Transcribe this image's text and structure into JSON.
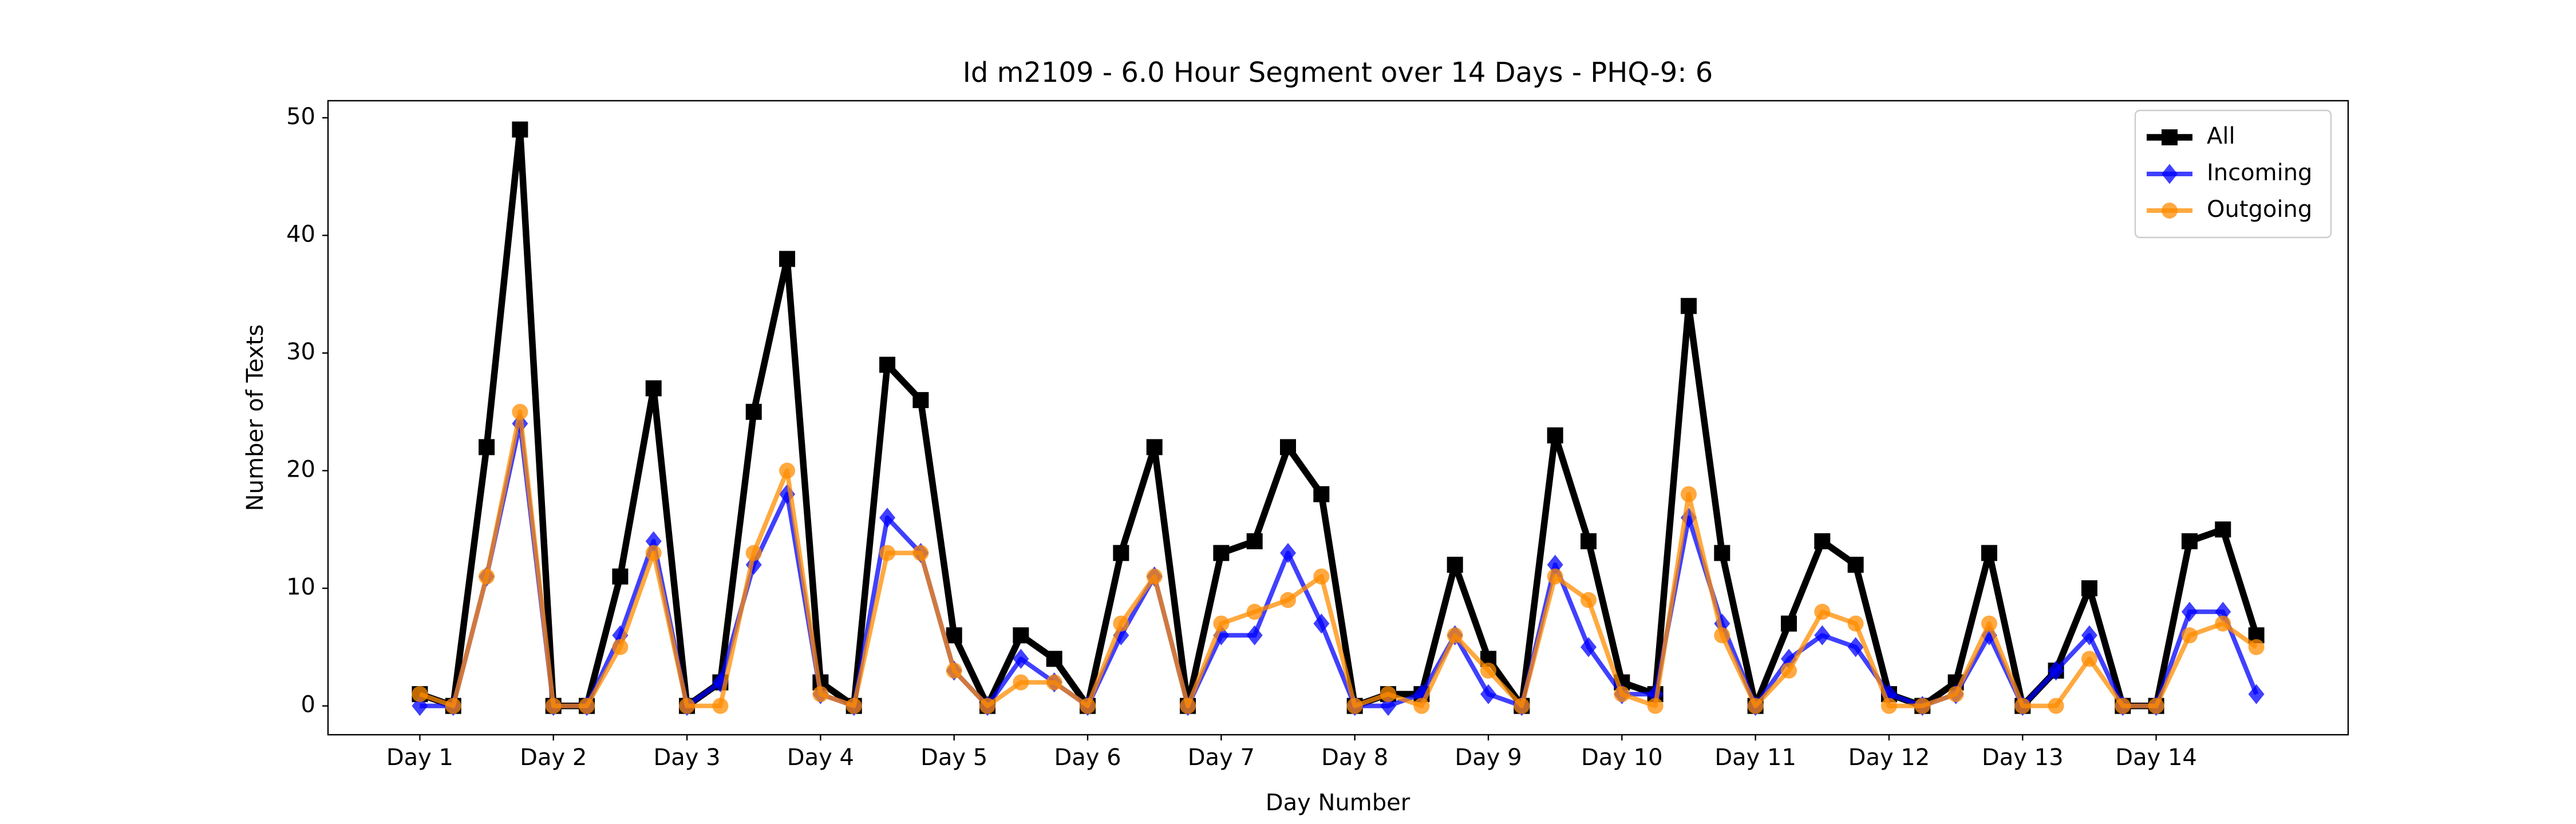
{
  "chart_data": {
    "type": "line",
    "title": "Id m2109 - 6.0 Hour Segment over 14 Days - PHQ-9: 6",
    "x_label": "Day Number",
    "y_label": "Number of Texts",
    "x": [
      0,
      1,
      2,
      3,
      4,
      5,
      6,
      7,
      8,
      9,
      10,
      11,
      12,
      13,
      14,
      15,
      16,
      17,
      18,
      19,
      20,
      21,
      22,
      23,
      24,
      25,
      26,
      27,
      28,
      29,
      30,
      31,
      32,
      33,
      34,
      35,
      36,
      37,
      38,
      39,
      40,
      41,
      42,
      43,
      44,
      45,
      46,
      47,
      48,
      49,
      50,
      51,
      52,
      53,
      54,
      55
    ],
    "series": [
      {
        "name": "All",
        "color": "#000000",
        "marker": "square",
        "width": "thick",
        "values": [
          1,
          0,
          22,
          49,
          0,
          0,
          11,
          27,
          0,
          2,
          25,
          38,
          2,
          0,
          29,
          26,
          6,
          0,
          6,
          4,
          0,
          13,
          22,
          0,
          13,
          14,
          22,
          18,
          0,
          1,
          1,
          12,
          4,
          0,
          23,
          14,
          2,
          1,
          34,
          13,
          0,
          7,
          14,
          12,
          1,
          0,
          2,
          13,
          0,
          3,
          10,
          0,
          0,
          14,
          15,
          6
        ]
      },
      {
        "name": "Incoming",
        "color": "#0000ff",
        "marker": "diamond",
        "width": "normal",
        "values": [
          0,
          0,
          11,
          24,
          0,
          0,
          6,
          14,
          0,
          2,
          12,
          18,
          1,
          0,
          16,
          13,
          3,
          0,
          4,
          2,
          0,
          6,
          11,
          0,
          6,
          6,
          13,
          7,
          0,
          0,
          1,
          6,
          1,
          0,
          12,
          5,
          1,
          1,
          16,
          7,
          0,
          4,
          6,
          5,
          1,
          0,
          1,
          6,
          0,
          3,
          6,
          0,
          0,
          8,
          8,
          1
        ]
      },
      {
        "name": "Outgoing",
        "color": "#ff8c00",
        "marker": "circle",
        "width": "normal",
        "values": [
          1,
          0,
          11,
          25,
          0,
          0,
          5,
          13,
          0,
          0,
          13,
          20,
          1,
          0,
          13,
          13,
          3,
          0,
          2,
          2,
          0,
          7,
          11,
          0,
          7,
          8,
          9,
          11,
          0,
          1,
          0,
          6,
          3,
          0,
          11,
          9,
          1,
          0,
          18,
          6,
          0,
          3,
          8,
          7,
          0,
          0,
          1,
          7,
          0,
          0,
          4,
          0,
          0,
          6,
          7,
          5
        ]
      }
    ],
    "xlim": [
      -2.75,
      57.75
    ],
    "xticks": [
      {
        "value": 0,
        "label": "Day 1"
      },
      {
        "value": 4,
        "label": "Day 2"
      },
      {
        "value": 8,
        "label": "Day 3"
      },
      {
        "value": 12,
        "label": "Day 4"
      },
      {
        "value": 16,
        "label": "Day 5"
      },
      {
        "value": 20,
        "label": "Day 6"
      },
      {
        "value": 24,
        "label": "Day 7"
      },
      {
        "value": 28,
        "label": "Day 8"
      },
      {
        "value": 32,
        "label": "Day 9"
      },
      {
        "value": 36,
        "label": "Day 10"
      },
      {
        "value": 40,
        "label": "Day 11"
      },
      {
        "value": 44,
        "label": "Day 12"
      },
      {
        "value": 48,
        "label": "Day 13"
      },
      {
        "value": 52,
        "label": "Day 14"
      }
    ],
    "ylim": [
      -2.45,
      51.45
    ],
    "yticks": [
      0,
      10,
      20,
      30,
      40,
      50
    ],
    "legend": "upper right"
  }
}
